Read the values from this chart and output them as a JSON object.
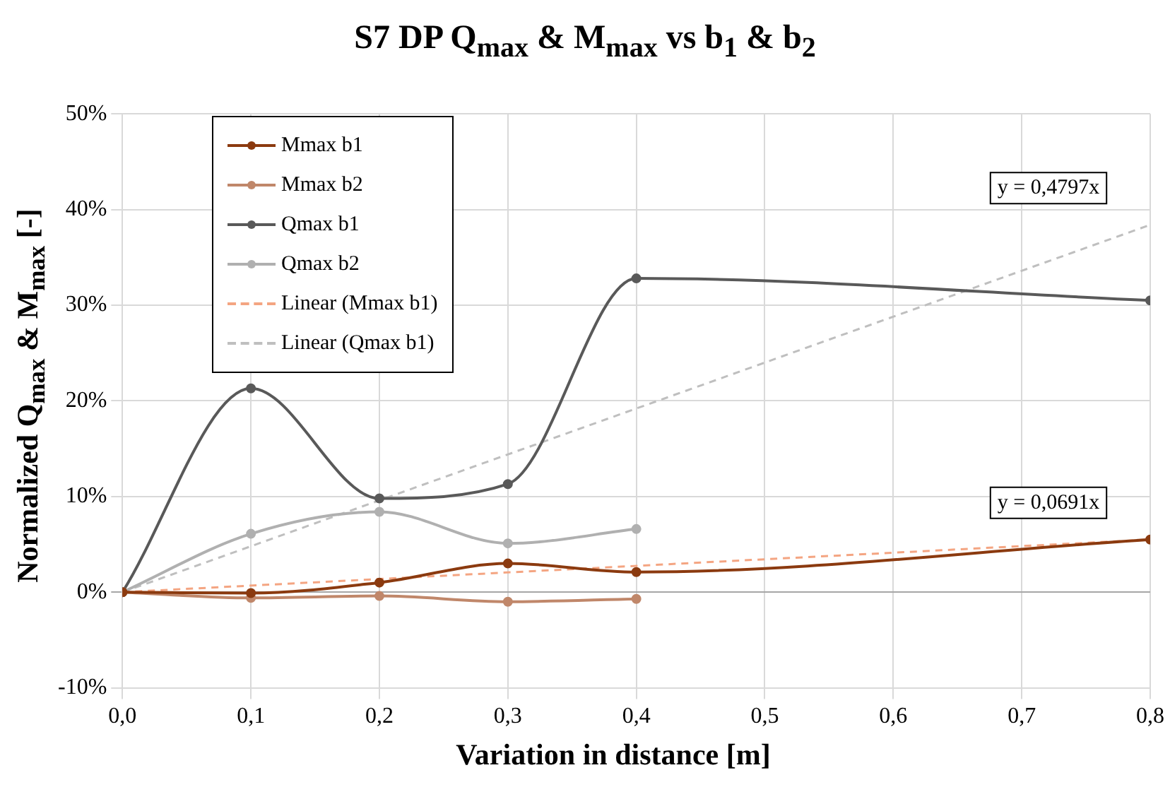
{
  "chart_data": {
    "type": "line",
    "title": "S7 DP Q$_{max}$ & M$_{max}$ vs b$_{1}$ & b$_{2}$",
    "xlabel": "Variation in distance [m]",
    "ylabel": "Normalized Q$_{max}$ & M$_{max}$ [-]",
    "x": [
      0,
      0.1,
      0.2,
      0.3,
      0.4,
      0.8
    ],
    "series": [
      {
        "name": "Mmax b1",
        "color": "#8b3a0f",
        "values": [
          0,
          -0.1,
          1.0,
          3.0,
          2.1,
          5.5
        ],
        "marker": "circle",
        "line_style": "solid"
      },
      {
        "name": "Mmax b2",
        "color": "#c0876a",
        "x": [
          0,
          0.1,
          0.2,
          0.3,
          0.4
        ],
        "values": [
          0,
          -0.6,
          -0.4,
          -1.0,
          -0.7
        ],
        "marker": "circle",
        "line_style": "solid"
      },
      {
        "name": "Qmax b1",
        "color": "#595959",
        "values": [
          0,
          21.3,
          9.8,
          11.3,
          32.8,
          30.5
        ],
        "marker": "circle",
        "line_style": "solid"
      },
      {
        "name": "Qmax b2",
        "color": "#b0b0b0",
        "x": [
          0,
          0.1,
          0.2,
          0.3,
          0.4
        ],
        "values": [
          0,
          6.1,
          8.4,
          5.1,
          6.6
        ],
        "marker": "circle",
        "line_style": "solid"
      },
      {
        "name": "Linear (Mmax b1)",
        "color": "#f4a582",
        "x": [
          0,
          0.8
        ],
        "values": [
          0,
          5.5
        ],
        "marker": "none",
        "line_style": "dashed"
      },
      {
        "name": "Linear (Qmax b1)",
        "color": "#bfbfbf",
        "x": [
          0,
          0.8
        ],
        "values": [
          0,
          38.4
        ],
        "marker": "none",
        "line_style": "dashed"
      }
    ],
    "xlim": [
      0,
      0.8
    ],
    "xticks": [
      {
        "value": 0,
        "label": "0,0"
      },
      {
        "value": 0.1,
        "label": "0,1"
      },
      {
        "value": 0.2,
        "label": "0,2"
      },
      {
        "value": 0.3,
        "label": "0,3"
      },
      {
        "value": 0.4,
        "label": "0,4"
      },
      {
        "value": 0.5,
        "label": "0,5"
      },
      {
        "value": 0.6,
        "label": "0,6"
      },
      {
        "value": 0.7,
        "label": "0,7"
      },
      {
        "value": 0.8,
        "label": "0,8"
      }
    ],
    "ylim": [
      -10,
      50
    ],
    "yticks": [
      {
        "value": -10,
        "label": "-10%"
      },
      {
        "value": 0,
        "label": "0%"
      },
      {
        "value": 10,
        "label": "10%"
      },
      {
        "value": 20,
        "label": "20%"
      },
      {
        "value": 30,
        "label": "30%"
      },
      {
        "value": 40,
        "label": "40%"
      },
      {
        "value": 50,
        "label": "50%"
      }
    ],
    "annotations": [
      {
        "text": "y = 0,4797x",
        "x": 0.8,
        "y": 38.4
      },
      {
        "text": "y = 0,0691x",
        "x": 0.8,
        "y": 5.5
      }
    ],
    "grid": true,
    "legend": "top left"
  }
}
